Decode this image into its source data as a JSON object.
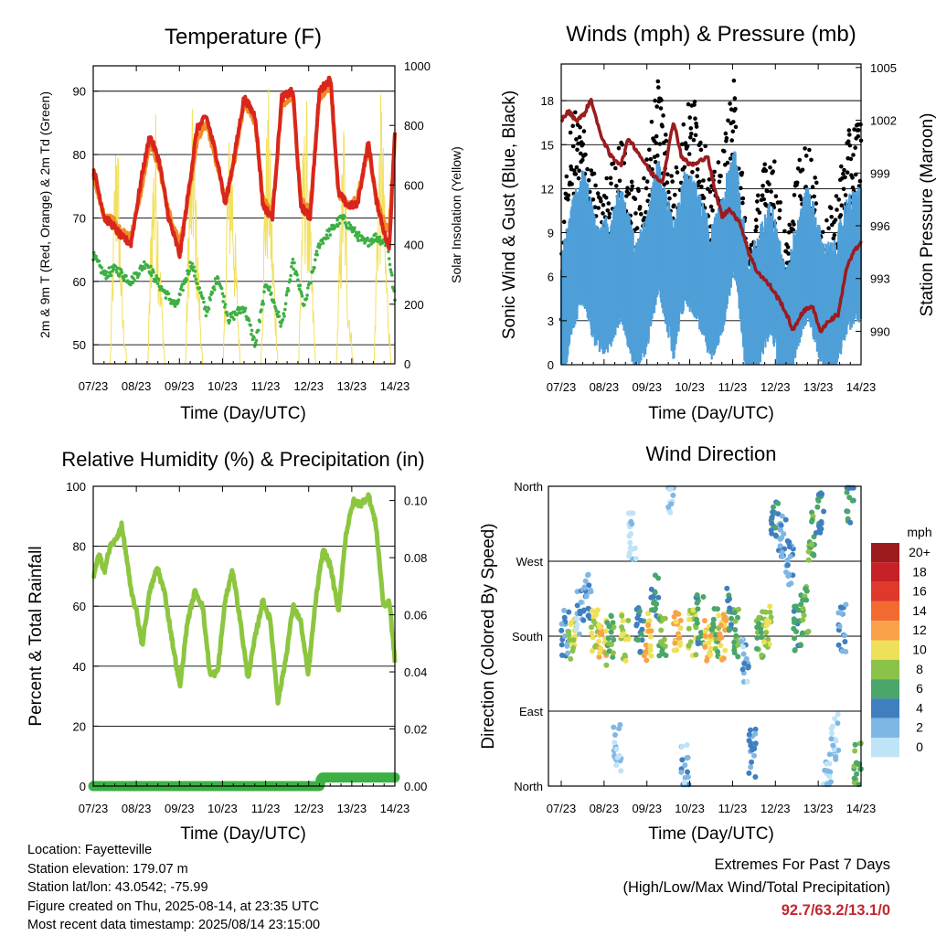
{
  "panels": {
    "temperature": {
      "title": "Temperature (F)",
      "ylabel_left": "2m & 9m T (Red, Orange) & 2m Td (Green)",
      "ylabel_right": "Solar Insolation (Yellow)",
      "xlabel": "Time (Day/UTC)"
    },
    "winds": {
      "title": "Winds (mph) & Pressure (mb)",
      "ylabel_left": "Sonic Wind & Gust (Blue, Black)",
      "ylabel_right": "Station Pressure (Maroon)",
      "xlabel": "Time (Day/UTC)"
    },
    "humidity": {
      "title": "Relative Humidity (%) & Precipitation (in)",
      "ylabel_left": "Percent & Total Rainfall",
      "xlabel": "Time (Day/UTC)"
    },
    "wind_direction": {
      "title": "Wind Direction",
      "ylabel_left": "Direction (Colored By Speed)",
      "xlabel": "Time (Day/UTC)",
      "colorbar_title": "mph",
      "colorbar_labels": [
        "20+",
        "18",
        "16",
        "14",
        "12",
        "10",
        "8",
        "6",
        "4",
        "2",
        "0"
      ],
      "colorbar_colors": [
        "#9b1b1e",
        "#c62127",
        "#e0382a",
        "#f26a30",
        "#f9a24a",
        "#efe05a",
        "#8bc34a",
        "#4aa66a",
        "#3f7fbf",
        "#7fb7e4",
        "#bfe3f7"
      ]
    }
  },
  "info": {
    "location": "Location: Fayetteville",
    "elevation": "Station elevation: 179.07 m",
    "latlon": "Station lat/lon: 43.0542; -75.99",
    "created": "Figure created on Thu, 2025-08-14, at 23:35 UTC",
    "recent": "Most recent data timestamp: 2025/08/14 23:15:00"
  },
  "extremes": {
    "heading": "Extremes For Past 7 Days",
    "subheading": "(High/Low/Max Wind/Total Precipitation)",
    "values": "92.7/63.2/13.1/0"
  },
  "colors": {
    "temp_2m": "#d9261c",
    "temp_9m": "#f28c28",
    "dewpoint": "#3cb043",
    "solar": "#f2e05c",
    "wind": "#4f9fd8",
    "gust": "#000000",
    "pressure": "#9b1b1e",
    "rh": "#8cc63f",
    "precip": "#3cb043"
  },
  "chart_data": [
    {
      "type": "line",
      "title": "Temperature (F)",
      "xlabel": "Time (Day/UTC)",
      "ylabel": "2m & 9m T (Red, Orange) & 2m Td (Green)",
      "y2label": "Solar Insolation (Yellow)",
      "x_ticks": [
        "07/23",
        "08/23",
        "09/23",
        "10/23",
        "11/23",
        "12/23",
        "13/23",
        "14/23"
      ],
      "ylim": [
        47,
        94
      ],
      "y_ticks": [
        50,
        60,
        70,
        80,
        90
      ],
      "y2lim": [
        0,
        1000
      ],
      "y2_ticks": [
        0,
        200,
        400,
        600,
        800,
        1000
      ],
      "grid": "horizontal",
      "series": [
        {
          "name": "2m T",
          "axis": "left",
          "x": [
            0,
            0.3,
            0.5,
            0.75,
            1.0,
            1.3,
            1.5,
            1.75,
            2.0,
            2.3,
            2.5,
            2.75,
            3.0,
            3.3,
            3.5,
            3.75,
            4.0,
            4.3,
            4.5,
            4.75,
            5.0,
            5.3,
            5.5,
            5.75,
            6.0,
            6.3,
            6.5,
            6.75,
            7.0,
            7.3,
            7.5,
            7.75,
            7.85,
            8.0
          ],
          "y": [
            78,
            70,
            69,
            67,
            66,
            77,
            83,
            79,
            70,
            64,
            73,
            84,
            86,
            79,
            72,
            80,
            89,
            86,
            72,
            70,
            89,
            90,
            72,
            70,
            90,
            92,
            74,
            72,
            72,
            82,
            73,
            67,
            65,
            84
          ]
        },
        {
          "name": "9m T",
          "axis": "left",
          "x": [
            0,
            0.3,
            0.5,
            0.75,
            1.0,
            1.3,
            1.5,
            1.75,
            2.0,
            2.3,
            2.5,
            2.75,
            3.0,
            3.3,
            3.5,
            3.75,
            4.0,
            4.3,
            4.5,
            4.75,
            5.0,
            5.3,
            5.5,
            5.75,
            6.0,
            6.3,
            6.5,
            6.75,
            7.0,
            7.3,
            7.5,
            7.75,
            7.85,
            8.0
          ],
          "y": [
            77,
            70,
            70,
            68,
            67,
            75,
            82,
            78,
            71,
            66,
            72,
            82,
            85,
            78,
            73,
            79,
            88,
            85,
            73,
            71,
            88,
            89,
            73,
            71,
            89,
            91,
            74,
            72,
            73,
            81,
            73,
            69,
            68,
            83
          ]
        },
        {
          "name": "2m Td",
          "axis": "left",
          "x": [
            0,
            0.3,
            0.6,
            1.0,
            1.4,
            1.8,
            2.2,
            2.6,
            3.0,
            3.3,
            3.6,
            4.0,
            4.3,
            4.6,
            5.0,
            5.3,
            5.6,
            6.0,
            6.3,
            6.6,
            6.9,
            7.2,
            7.5,
            7.8,
            8.0
          ],
          "y": [
            64,
            61,
            62,
            60,
            63,
            59,
            56,
            63,
            55,
            61,
            54,
            56,
            50,
            60,
            53,
            63,
            56,
            66,
            68,
            70,
            68,
            66,
            67,
            66,
            57
          ]
        },
        {
          "name": "Solar Insolation",
          "axis": "right",
          "x": [
            0,
            0.45,
            0.55,
            0.62,
            0.7,
            0.78,
            0.9,
            1.45,
            1.55,
            1.65,
            1.75,
            1.9,
            2.45,
            2.55,
            2.65,
            2.75,
            2.9,
            3.45,
            3.55,
            3.65,
            3.75,
            3.9,
            4.45,
            4.55,
            4.65,
            4.75,
            4.9,
            5.45,
            5.55,
            5.65,
            5.75,
            5.9,
            6.45,
            6.55,
            6.65,
            6.75,
            6.9,
            7.45,
            7.55,
            7.65,
            7.75,
            7.9,
            8.0
          ],
          "y": [
            0,
            0,
            600,
            930,
            600,
            200,
            0,
            0,
            650,
            900,
            450,
            0,
            0,
            700,
            900,
            500,
            0,
            0,
            650,
            920,
            520,
            0,
            0,
            680,
            940,
            500,
            0,
            0,
            700,
            950,
            520,
            0,
            0,
            500,
            900,
            300,
            0,
            0,
            720,
            980,
            450,
            0,
            0
          ]
        }
      ]
    },
    {
      "type": "scatter",
      "title": "Winds (mph) & Pressure (mb)",
      "xlabel": "Time (Day/UTC)",
      "ylabel": "Sonic Wind & Gust (Blue, Black)",
      "y2label": "Station Pressure (Maroon)",
      "x_ticks": [
        "07/23",
        "08/23",
        "09/23",
        "10/23",
        "11/23",
        "12/23",
        "13/23",
        "14/23"
      ],
      "ylim": [
        0,
        20.5
      ],
      "y_ticks": [
        0,
        3,
        6,
        9,
        12,
        15,
        18
      ],
      "y2lim": [
        988.1,
        1005.2
      ],
      "y2_ticks": [
        990,
        993,
        996,
        999,
        1002,
        1005
      ],
      "grid": "horizontal",
      "series": [
        {
          "name": "Sonic Wind",
          "axis": "left",
          "x": [
            0,
            0.3,
            0.6,
            1.0,
            1.3,
            1.6,
            2.0,
            2.3,
            2.6,
            3.0,
            3.3,
            3.6,
            4.0,
            4.3,
            4.6,
            5.0,
            5.3,
            5.6,
            6.0,
            6.3,
            6.6,
            7.0,
            7.3,
            7.6,
            8.0
          ],
          "y": [
            3,
            7,
            9,
            5,
            6,
            8,
            4,
            6,
            10,
            5,
            9,
            8,
            5,
            7,
            11,
            3,
            5,
            7,
            2,
            6,
            8,
            4,
            4,
            7,
            8
          ]
        },
        {
          "name": "Gust",
          "axis": "left",
          "x": [
            0,
            0.3,
            0.6,
            1.0,
            1.3,
            1.6,
            2.0,
            2.3,
            2.6,
            3.0,
            3.3,
            3.6,
            4.0,
            4.3,
            4.6,
            5.0,
            5.3,
            5.6,
            6.0,
            6.3,
            6.6,
            7.0,
            7.3,
            7.6,
            8.0
          ],
          "y": [
            5,
            14,
            13,
            8,
            10,
            12,
            8,
            11,
            17,
            9,
            14,
            15,
            9,
            11,
            16,
            5,
            9,
            12,
            5,
            10,
            12,
            6,
            8,
            12,
            14
          ]
        },
        {
          "name": "Station Pressure",
          "axis": "right",
          "x": [
            0,
            0.2,
            0.4,
            0.6,
            0.8,
            1.0,
            1.3,
            1.6,
            1.8,
            2.1,
            2.4,
            2.7,
            3.0,
            3.2,
            3.4,
            3.6,
            3.9,
            4.1,
            4.3,
            4.5,
            4.8,
            5.0,
            5.2,
            5.4,
            5.6,
            5.9,
            6.2,
            6.4,
            6.7,
            6.9,
            7.1,
            7.4,
            7.6,
            7.8,
            8.0
          ],
          "y": [
            1002.0,
            1002.5,
            1002.0,
            1002.3,
            1003.2,
            1001.5,
            1000.0,
            999.5,
            1001.0,
            1000.0,
            999.0,
            998.5,
            1002.0,
            1000.0,
            999.5,
            999.5,
            1000.0,
            998.0,
            996.5,
            997.0,
            996.0,
            994.5,
            993.5,
            993.0,
            992.5,
            991.5,
            990.0,
            991.0,
            991.5,
            990.0,
            990.5,
            991.0,
            993.5,
            994.5,
            995.0
          ]
        }
      ]
    },
    {
      "type": "line",
      "title": "Relative Humidity (%) & Precipitation (in)",
      "xlabel": "Time (Day/UTC)",
      "ylabel": "Percent & Total Rainfall",
      "x_ticks": [
        "07/23",
        "08/23",
        "09/23",
        "10/23",
        "11/23",
        "12/23",
        "13/23",
        "14/23"
      ],
      "ylim": [
        0,
        100
      ],
      "y_ticks": [
        0,
        20,
        40,
        60,
        80,
        100
      ],
      "y2lim": [
        0,
        0.105
      ],
      "y2_ticks": [
        0.0,
        0.02,
        0.04,
        0.06,
        0.08,
        0.1
      ],
      "grid": "horizontal",
      "series": [
        {
          "name": "Relative Humidity",
          "axis": "left",
          "x": [
            0,
            0.15,
            0.3,
            0.45,
            0.6,
            0.75,
            0.9,
            1.0,
            1.15,
            1.3,
            1.5,
            1.7,
            1.9,
            2.1,
            2.3,
            2.5,
            2.7,
            2.9,
            3.1,
            3.3,
            3.5,
            3.7,
            3.9,
            4.1,
            4.3,
            4.5,
            4.7,
            4.9,
            5.1,
            5.3,
            5.5,
            5.7,
            5.9,
            6.1,
            6.3,
            6.5,
            6.7,
            6.9,
            7.1,
            7.3,
            7.5,
            7.7,
            7.85,
            8.0
          ],
          "y": [
            70,
            77,
            72,
            80,
            82,
            87,
            75,
            65,
            58,
            47,
            65,
            73,
            64,
            48,
            33,
            55,
            65,
            60,
            37,
            38,
            62,
            72,
            55,
            36,
            50,
            62,
            55,
            28,
            42,
            60,
            55,
            37,
            62,
            79,
            73,
            58,
            84,
            95,
            94,
            97,
            87,
            60,
            62,
            42
          ]
        },
        {
          "name": "Total Rainfall",
          "axis": "right",
          "x": [
            0,
            6.0,
            6.05,
            7.4,
            7.5,
            8.0
          ],
          "y": [
            0,
            0,
            0.003,
            0.003,
            0.003,
            0.003
          ]
        }
      ]
    },
    {
      "type": "scatter",
      "title": "Wind Direction",
      "xlabel": "Time (Day/UTC)",
      "ylabel": "Direction (Colored By Speed)",
      "x_ticks": [
        "07/23",
        "08/23",
        "09/23",
        "10/23",
        "11/23",
        "12/23",
        "13/23",
        "14/23"
      ],
      "y_ticks": [
        "North",
        "East",
        "South",
        "West",
        "North"
      ],
      "ylim": [
        0,
        360
      ],
      "colorbar": {
        "title": "mph",
        "labels": [
          "0",
          "2",
          "4",
          "6",
          "8",
          "10",
          "12",
          "14",
          "16",
          "18",
          "20+"
        ]
      },
      "series": [
        {
          "name": "Direction",
          "x": [
            0.1,
            0.3,
            0.5,
            0.7,
            0.9,
            1.1,
            1.3,
            1.5,
            1.7,
            1.9,
            2.1,
            2.3,
            2.5,
            2.7,
            2.9,
            3.1,
            3.3,
            3.5,
            3.7,
            3.9,
            4.1,
            4.3,
            4.5,
            4.7,
            4.9,
            5.1,
            5.3,
            5.5,
            5.7,
            5.9,
            6.1,
            6.3,
            6.5,
            6.7,
            6.9,
            7.1,
            7.3,
            7.5,
            7.7,
            7.9
          ],
          "y": [
            185,
            180,
            210,
            230,
            185,
            180,
            175,
            45,
            180,
            300,
            185,
            180,
            230,
            175,
            355,
            180,
            20,
            185,
            200,
            180,
            185,
            180,
            210,
            185,
            150,
            40,
            180,
            195,
            330,
            300,
            270,
            190,
            210,
            300,
            330,
            10,
            60,
            190,
            345,
            25
          ],
          "speed": [
            4,
            10,
            3,
            4,
            10,
            12,
            8,
            2,
            10,
            1,
            6,
            12,
            6,
            8,
            2,
            12,
            3,
            10,
            6,
            12,
            8,
            12,
            6,
            8,
            3,
            4,
            8,
            10,
            6,
            4,
            4,
            6,
            8,
            8,
            6,
            2,
            2,
            4,
            6,
            8
          ]
        }
      ]
    }
  ]
}
